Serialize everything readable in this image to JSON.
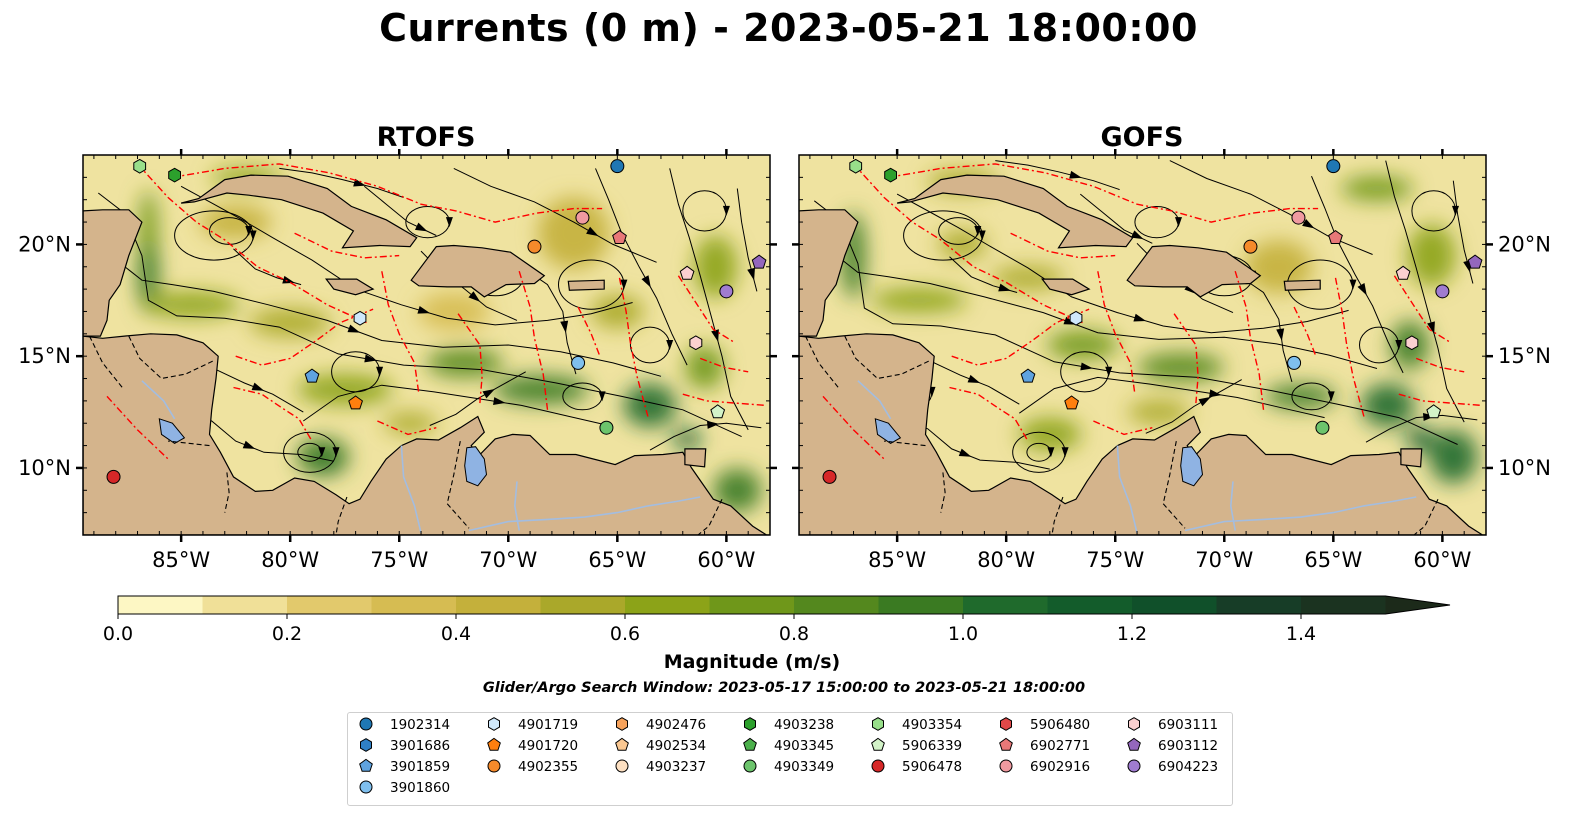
{
  "title": "Currents (0 m) - 2023-05-21 18:00:00",
  "colors": {
    "land": "#d4b48c",
    "lake": "#8fb3e3",
    "river": "#a3bde0",
    "streamline": "#000000",
    "eez": "#ff0000"
  },
  "chart_data": [
    {
      "type": "map",
      "title": "RTOFS",
      "xlim": [
        -89.5,
        -58
      ],
      "ylim": [
        7,
        24
      ],
      "x_ticks": [
        -85,
        -80,
        -75,
        -70,
        -65,
        -60
      ],
      "x_tick_labels": [
        "85°W",
        "80°W",
        "75°W",
        "70°W",
        "65°W",
        "60°W"
      ],
      "y_ticks": [
        10,
        15,
        20
      ],
      "y_tick_labels": [
        "10°N",
        "15°N",
        "20°N"
      ],
      "y_label_side": "left"
    },
    {
      "type": "map",
      "title": "GOFS",
      "xlim": [
        -89.5,
        -58
      ],
      "ylim": [
        7,
        24
      ],
      "x_ticks": [
        -85,
        -80,
        -75,
        -70,
        -65,
        -60
      ],
      "x_tick_labels": [
        "85°W",
        "80°W",
        "75°W",
        "70°W",
        "65°W",
        "60°W"
      ],
      "y_ticks": [
        10,
        15,
        20
      ],
      "y_tick_labels": [
        "10°N",
        "15°N",
        "20°N"
      ],
      "y_label_side": "right"
    }
  ],
  "colorbar": {
    "label": "Magnitude (m/s)",
    "min": 0.0,
    "max": 1.5,
    "ticks": [
      "0.0",
      "0.2",
      "0.4",
      "0.6",
      "0.8",
      "1.0",
      "1.2",
      "1.4"
    ],
    "tick_values": [
      0.0,
      0.2,
      0.4,
      0.6,
      0.8,
      1.0,
      1.2,
      1.4
    ],
    "colors": [
      "#fdf7c4",
      "#f0e098",
      "#e2c96c",
      "#d6bc52",
      "#c4b03b",
      "#aaa82a",
      "#8ca318",
      "#6f971a",
      "#54881e",
      "#3a7a22",
      "#1f6a2c",
      "#135c2b",
      "#10502a",
      "#173d27",
      "#1b3320",
      "#1c2a1a"
    ],
    "extend": "max"
  },
  "search_window": "Glider/Argo Search Window: 2023-05-17 15:00:00 to 2023-05-21 18:00:00",
  "platforms": [
    {
      "id": "1902314",
      "marker": "circle",
      "color": "#1f77b4",
      "lon": -65.0,
      "lat": 23.5
    },
    {
      "id": "3901686",
      "marker": "hexagon",
      "color": "#2f7fc4"
    },
    {
      "id": "3901859",
      "marker": "pentagon",
      "color": "#5fa3e0",
      "lon": -79.0,
      "lat": 14.1
    },
    {
      "id": "3901860",
      "marker": "circle",
      "color": "#7fbfee",
      "lon": -66.8,
      "lat": 14.7
    },
    {
      "id": "4901719",
      "marker": "hexagon",
      "color": "#cfe8fb",
      "lon": -76.8,
      "lat": 16.7
    },
    {
      "id": "4901720",
      "marker": "pentagon",
      "color": "#ff7f0e",
      "lon": -77.0,
      "lat": 12.9
    },
    {
      "id": "4902355",
      "marker": "circle",
      "color": "#f58a2b",
      "lon": -68.8,
      "lat": 19.9
    },
    {
      "id": "4902476",
      "marker": "hexagon",
      "color": "#f7a35c"
    },
    {
      "id": "4902534",
      "marker": "pentagon",
      "color": "#fbc892"
    },
    {
      "id": "4903237",
      "marker": "circle",
      "color": "#fde0c2"
    },
    {
      "id": "4903238",
      "marker": "hexagon",
      "color": "#2ca02c",
      "lon": -85.3,
      "lat": 23.1
    },
    {
      "id": "4903345",
      "marker": "pentagon",
      "color": "#4bb04b"
    },
    {
      "id": "4903349",
      "marker": "circle",
      "color": "#6cc46c",
      "lon": -65.5,
      "lat": 11.8
    },
    {
      "id": "4903354",
      "marker": "hexagon",
      "color": "#98df8a",
      "lon": -86.9,
      "lat": 23.5
    },
    {
      "id": "5906339",
      "marker": "pentagon",
      "color": "#d3f3c8",
      "lon": -60.4,
      "lat": 12.5
    },
    {
      "id": "5906478",
      "marker": "circle",
      "color": "#d62728",
      "lon": -88.1,
      "lat": 9.6
    },
    {
      "id": "5906480",
      "marker": "hexagon",
      "color": "#e04848"
    },
    {
      "id": "6902771",
      "marker": "pentagon",
      "color": "#e87878",
      "lon": -64.9,
      "lat": 20.3
    },
    {
      "id": "6902916",
      "marker": "circle",
      "color": "#f09aa0",
      "lon": -66.6,
      "lat": 21.2
    },
    {
      "id": "6903111",
      "marker": "hexagon",
      "color": "#fbd0d0",
      "lon": -61.4,
      "lat": 15.6
    },
    {
      "id": "6903112",
      "marker": "pentagon",
      "color": "#9467bd",
      "lon": -58.5,
      "lat": 19.2
    },
    {
      "id": "6904223",
      "marker": "circle",
      "color": "#a07cd0",
      "lon": -60.0,
      "lat": 17.9
    }
  ],
  "extra_markers": [
    {
      "marker": "pentagon",
      "color": "#fbd0d0",
      "lon": -61.8,
      "lat": 18.7
    }
  ]
}
